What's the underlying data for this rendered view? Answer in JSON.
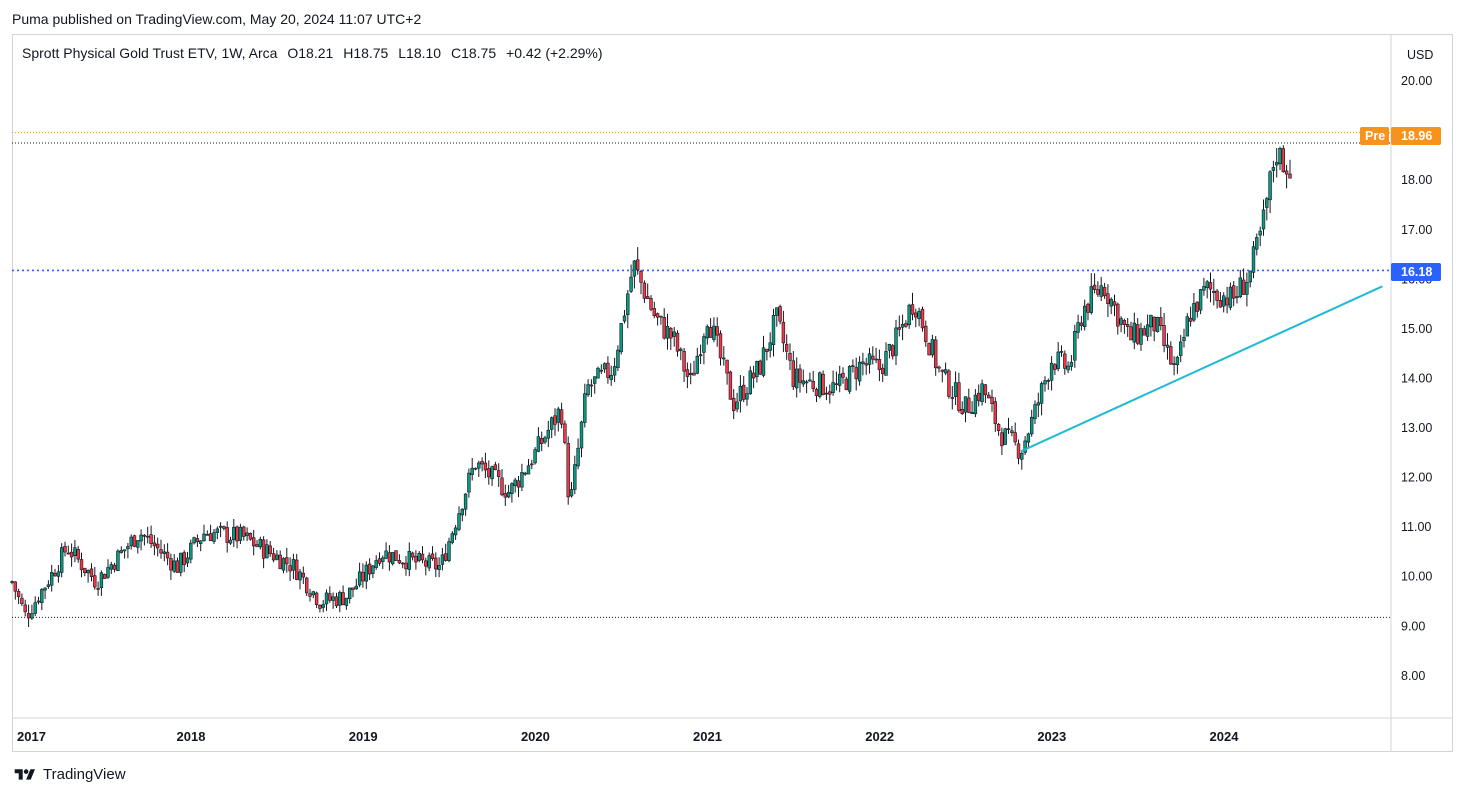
{
  "header": {
    "publish_text": "Puma published on TradingView.com, May 20, 2024 11:07 UTC+2"
  },
  "legend": {
    "symbol": "Sprott Physical Gold Trust ETV, 1W, Arca",
    "open": "O18.21",
    "high": "H18.75",
    "low": "L18.10",
    "close": "C18.75",
    "change": "+0.42 (+2.29%)"
  },
  "price_scale": {
    "currency": "USD"
  },
  "badges": {
    "pre_label": "Pre",
    "pre_price": "18.96",
    "level_price": "16.18"
  },
  "footer": {
    "brand": "TradingView"
  },
  "colors": {
    "up": "#089981",
    "down": "#f23645",
    "candle": "#131722",
    "level_line": "#2962ff",
    "trend_line": "#1fbad6",
    "pre_badge": "#f7931a",
    "level_badge": "#2962ff"
  },
  "chart_data": {
    "type": "candlestick",
    "timeframe": "1W",
    "y_ticks": [
      "20.00",
      "18.00",
      "17.00",
      "16.00",
      "15.00",
      "14.00",
      "13.00",
      "12.00",
      "11.00",
      "10.00",
      "9.00",
      "8.00"
    ],
    "y_tick_values": [
      20,
      18,
      17,
      16,
      15,
      14,
      13,
      12,
      11,
      10,
      9,
      8
    ],
    "x_ticks": [
      "2017",
      "2018",
      "2019",
      "2020",
      "2021",
      "2022",
      "2023",
      "2024"
    ],
    "ylim": [
      7.15,
      20.95
    ],
    "xlim": [
      2016.96,
      2024.97
    ],
    "horizontal_lines": [
      {
        "price": 16.18,
        "style": "dotted",
        "color": "#2962ff"
      },
      {
        "price": 18.96,
        "style": "dotted",
        "color": "#f7931a"
      },
      {
        "price": 18.75,
        "style": "dotted",
        "color": "#131722"
      },
      {
        "price": 9.18,
        "style": "dotted",
        "color": "#131722"
      }
    ],
    "trendline": {
      "start": [
        2022.82,
        12.53
      ],
      "end": [
        2024.92,
        15.86
      ]
    },
    "path": [
      [
        2016.96,
        9.9
      ],
      [
        2017.04,
        9.2
      ],
      [
        2017.2,
        10.1
      ],
      [
        2017.28,
        10.6
      ],
      [
        2017.45,
        9.9
      ],
      [
        2017.7,
        10.9
      ],
      [
        2017.92,
        10.2
      ],
      [
        2018.08,
        10.9
      ],
      [
        2018.3,
        10.8
      ],
      [
        2018.6,
        10.2
      ],
      [
        2018.75,
        9.5
      ],
      [
        2018.9,
        9.6
      ],
      [
        2019.0,
        10.0
      ],
      [
        2019.1,
        10.5
      ],
      [
        2019.3,
        10.3
      ],
      [
        2019.45,
        10.2
      ],
      [
        2019.58,
        11.6
      ],
      [
        2019.65,
        12.3
      ],
      [
        2019.85,
        11.7
      ],
      [
        2020.0,
        12.5
      ],
      [
        2020.15,
        13.4
      ],
      [
        2020.2,
        11.4
      ],
      [
        2020.3,
        13.8
      ],
      [
        2020.45,
        14.2
      ],
      [
        2020.57,
        16.3
      ],
      [
        2020.7,
        15.2
      ],
      [
        2020.8,
        14.8
      ],
      [
        2020.9,
        13.9
      ],
      [
        2021.0,
        15.3
      ],
      [
        2021.15,
        13.5
      ],
      [
        2021.3,
        14.2
      ],
      [
        2021.4,
        15.2
      ],
      [
        2021.5,
        14.0
      ],
      [
        2021.75,
        13.8
      ],
      [
        2021.9,
        14.3
      ],
      [
        2022.0,
        14.2
      ],
      [
        2022.1,
        14.8
      ],
      [
        2022.2,
        15.6
      ],
      [
        2022.35,
        14.1
      ],
      [
        2022.5,
        13.4
      ],
      [
        2022.6,
        13.8
      ],
      [
        2022.7,
        12.9
      ],
      [
        2022.82,
        12.55
      ],
      [
        2022.9,
        13.3
      ],
      [
        2023.0,
        14.4
      ],
      [
        2023.1,
        14.2
      ],
      [
        2023.18,
        15.4
      ],
      [
        2023.3,
        15.9
      ],
      [
        2023.45,
        14.8
      ],
      [
        2023.6,
        15.1
      ],
      [
        2023.72,
        14.1
      ],
      [
        2023.8,
        15.3
      ],
      [
        2023.9,
        15.8
      ],
      [
        2024.05,
        15.6
      ],
      [
        2024.15,
        16.1
      ],
      [
        2024.22,
        17.0
      ],
      [
        2024.3,
        18.6
      ],
      [
        2024.38,
        18.2
      ],
      [
        2024.4,
        18.75
      ]
    ]
  }
}
